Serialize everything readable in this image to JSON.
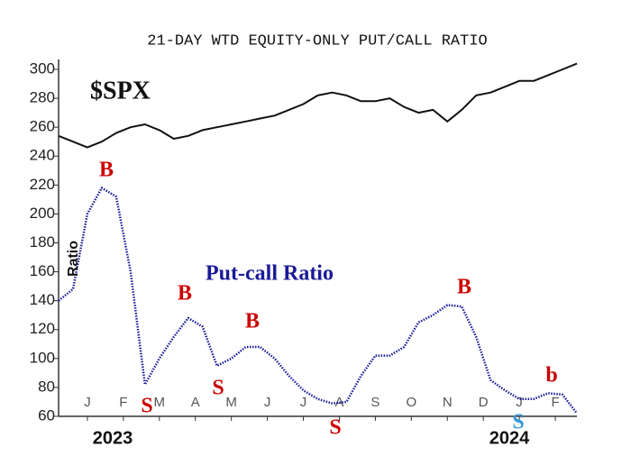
{
  "chart_data": {
    "type": "line",
    "title": "21-DAY WTD EQUITY-ONLY PUT/CALL RATIO",
    "x": [
      -0.8,
      -0.4,
      0,
      0.4,
      0.8,
      1.2,
      1.6,
      2,
      2.4,
      2.8,
      3.2,
      3.6,
      4,
      4.4,
      4.8,
      5.2,
      5.6,
      6,
      6.4,
      6.8,
      7.2,
      7.6,
      8,
      8.4,
      8.8,
      9.2,
      9.6,
      10,
      10.4,
      10.8,
      11.2,
      11.6,
      12,
      12.4,
      12.8,
      13.2,
      13.6
    ],
    "series": [
      {
        "name": "$SPX",
        "color": "#111111",
        "style": "solid",
        "values": [
          254,
          250,
          246,
          250,
          256,
          260,
          262,
          258,
          252,
          254,
          258,
          260,
          262,
          264,
          266,
          268,
          272,
          276,
          282,
          284,
          282,
          278,
          278,
          280,
          274,
          270,
          272,
          264,
          272,
          282,
          284,
          288,
          292,
          292,
          296,
          300,
          304
        ]
      },
      {
        "name": "Put-call Ratio",
        "color": "#1a1a99",
        "style": "dotted",
        "values": [
          140,
          148,
          200,
          218,
          212,
          160,
          82,
          100,
          115,
          128,
          122,
          95,
          100,
          108,
          108,
          100,
          88,
          78,
          72,
          69,
          70,
          88,
          102,
          102,
          108,
          125,
          130,
          137,
          136,
          115,
          85,
          78,
          72,
          72,
          76,
          75,
          62
        ]
      }
    ],
    "xlim": [
      -0.8,
      13.6
    ],
    "xticks": [
      {
        "value": 0,
        "label": "J"
      },
      {
        "value": 1,
        "label": "F"
      },
      {
        "value": 2,
        "label": "M"
      },
      {
        "value": 3,
        "label": "A"
      },
      {
        "value": 4,
        "label": "M"
      },
      {
        "value": 5,
        "label": "J"
      },
      {
        "value": 6,
        "label": "J"
      },
      {
        "value": 7,
        "label": "A"
      },
      {
        "value": 8,
        "label": "S"
      },
      {
        "value": 9,
        "label": "O"
      },
      {
        "value": 10,
        "label": "N"
      },
      {
        "value": 11,
        "label": "D"
      },
      {
        "value": 12,
        "label": "J"
      },
      {
        "value": 13,
        "label": "F"
      }
    ],
    "ylim": [
      60,
      300
    ],
    "yticks": [
      60,
      80,
      100,
      120,
      140,
      160,
      180,
      200,
      220,
      240,
      260,
      280,
      300
    ],
    "annotations": [
      {
        "text": "$SPX",
        "color": "#111111"
      },
      {
        "text": "Put-call Ratio",
        "color": "#1a1a99"
      },
      {
        "text": "Ratio",
        "color": "#111111"
      },
      {
        "text": "B",
        "color": "#cc0000"
      },
      {
        "text": "S",
        "color": "#cc0000"
      },
      {
        "text": "B",
        "color": "#cc0000"
      },
      {
        "text": "S",
        "color": "#cc0000"
      },
      {
        "text": "B",
        "color": "#cc0000"
      },
      {
        "text": "S",
        "color": "#cc0000"
      },
      {
        "text": "B",
        "color": "#cc0000"
      },
      {
        "text": "b",
        "color": "#cc0000"
      },
      {
        "text": "S",
        "color": "#3399dd"
      },
      {
        "text": "2023",
        "color": "#111111"
      },
      {
        "text": "2024",
        "color": "#111111"
      }
    ]
  }
}
